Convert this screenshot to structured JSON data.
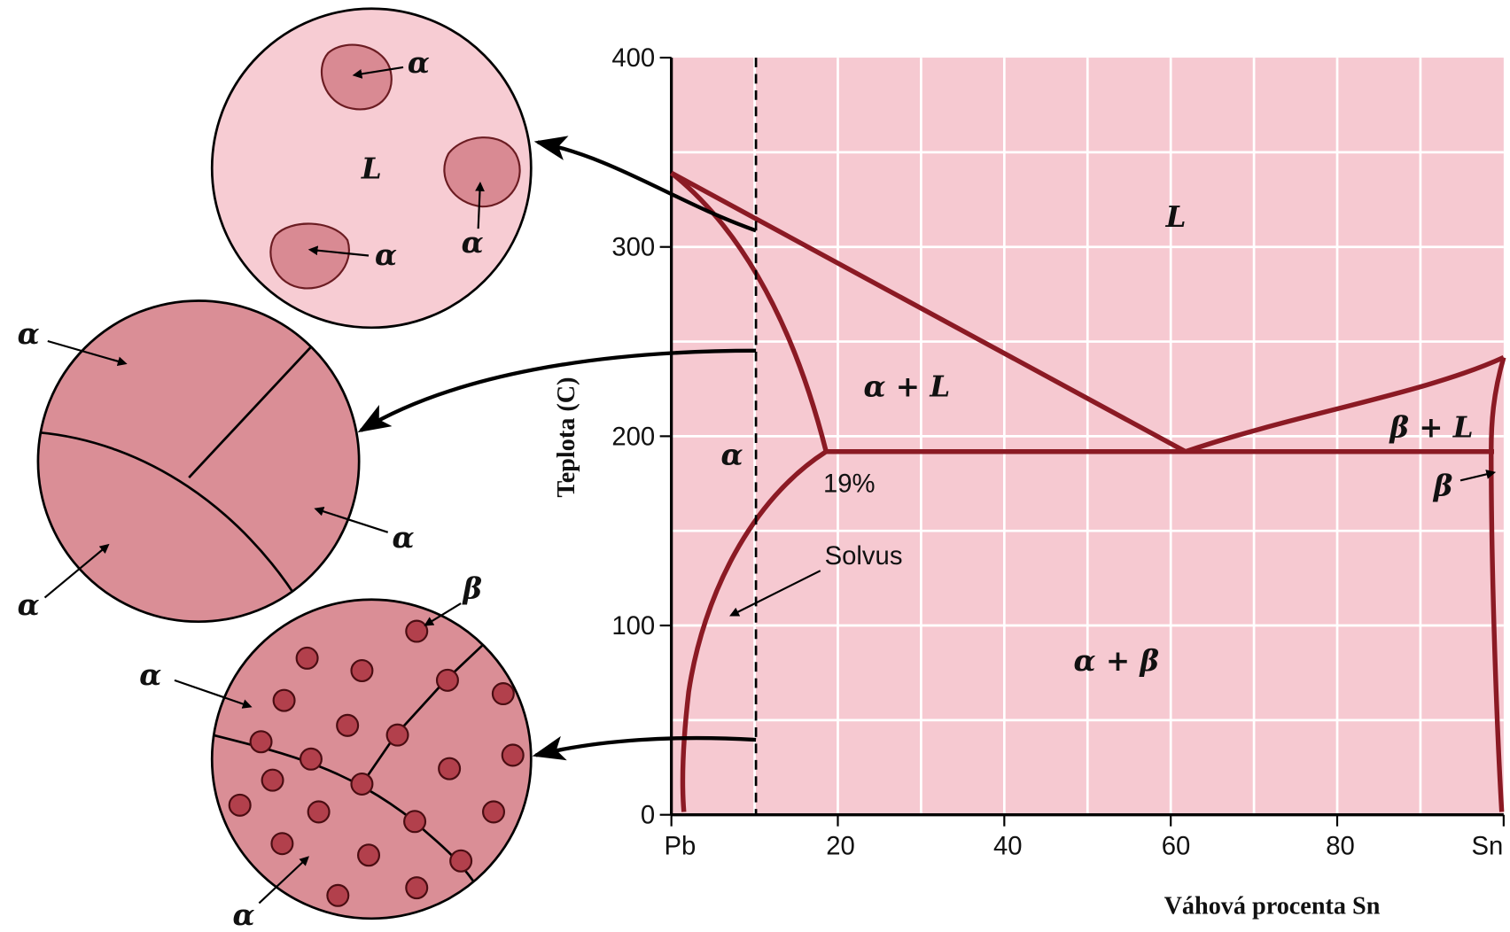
{
  "diagram": {
    "y_axis_title": "Teplota (C)",
    "x_axis_title": "Váhová procenta Sn",
    "y_ticks": [
      "400",
      "300",
      "200",
      "100",
      "0"
    ],
    "x_ticks": [
      "Pb",
      "20",
      "40",
      "60",
      "80",
      "Sn"
    ],
    "regions": [
      "L",
      "α + L",
      "α",
      "β + L",
      "β",
      "α + β"
    ],
    "annotations": [
      "19%",
      "Solvus"
    ],
    "micro_1": {
      "matrix": "L",
      "labels": [
        "α",
        "α",
        "α"
      ]
    },
    "micro_2": {
      "labels": [
        "α",
        "α",
        "α"
      ]
    },
    "micro_3": {
      "labels": [
        "β",
        "α",
        "α"
      ]
    }
  }
}
